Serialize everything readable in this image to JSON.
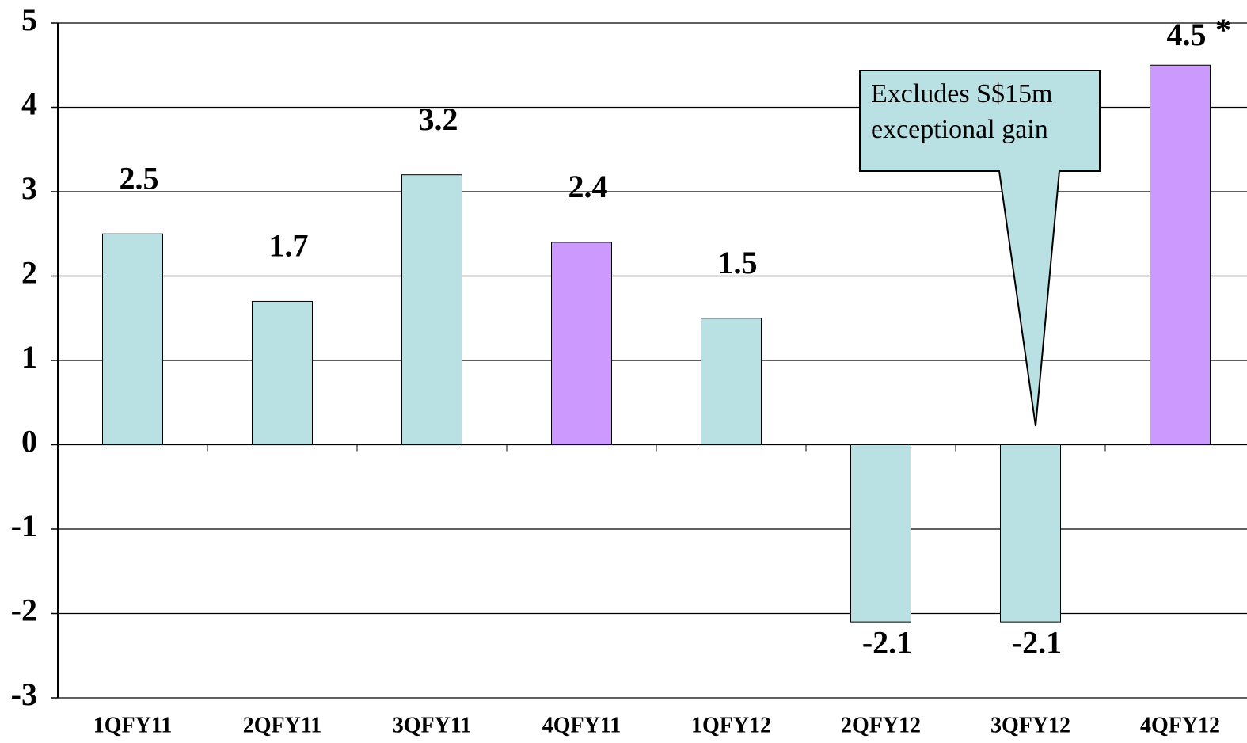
{
  "chart_data": {
    "type": "bar",
    "categories": [
      "1QFY11",
      "2QFY11",
      "3QFY11",
      "4QFY11",
      "1QFY12",
      "2QFY12",
      "3QFY12",
      "4QFY12"
    ],
    "values": [
      2.5,
      1.7,
      3.2,
      2.4,
      1.5,
      -2.1,
      -2.1,
      4.5
    ],
    "colors": [
      "#b9e0e3",
      "#b9e0e3",
      "#b9e0e3",
      "#cc99ff",
      "#b9e0e3",
      "#b9e0e3",
      "#b9e0e3",
      "#cc99ff"
    ],
    "ylim": [
      -3,
      5
    ],
    "yticks": [
      -3,
      -2,
      -1,
      0,
      1,
      2,
      3,
      4,
      5
    ],
    "grid": true,
    "annotations": {
      "callout": [
        "Excludes S$15m",
        "exceptional gain"
      ],
      "asterisk": "*"
    }
  }
}
